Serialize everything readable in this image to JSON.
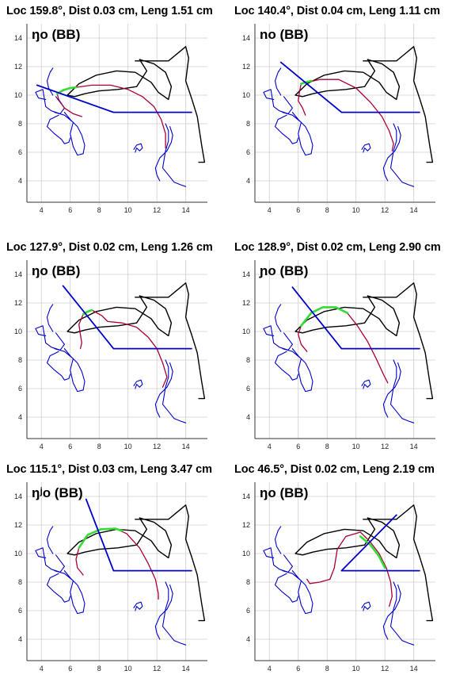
{
  "chart_data": {
    "type": "line",
    "xlim": [
      3,
      15.5
    ],
    "ylim": [
      2.5,
      15
    ],
    "xticks": [
      4,
      6,
      8,
      10,
      12,
      14
    ],
    "yticks": [
      4,
      6,
      8,
      10,
      12,
      14
    ],
    "grid": true,
    "panels": [
      {
        "title": "Loc 159.8°, Dist  0.03 cm, Leng  1.51 cm",
        "label": "ŋo (BB)",
        "blue_line": [
          [
            3.7,
            10.7
          ],
          [
            9,
            8.8
          ],
          [
            14.4,
            8.8
          ]
        ],
        "tongue": [
          [
            5.1,
            10.1
          ],
          [
            5.8,
            10.45
          ],
          [
            6.4,
            10.55
          ],
          [
            7.5,
            10.7
          ],
          [
            8.8,
            10.7
          ],
          [
            10,
            10.4
          ],
          [
            11,
            9.9
          ],
          [
            11.8,
            9.2
          ],
          [
            12.3,
            8.3
          ],
          [
            12.6,
            7.3
          ],
          [
            12.6,
            6.3
          ]
        ],
        "green": [
          [
            5.1,
            10.1
          ],
          [
            5.5,
            10.35
          ],
          [
            6.0,
            10.5
          ],
          [
            6.4,
            10.55
          ]
        ],
        "tip": [
          [
            5.1,
            10.1
          ],
          [
            5.2,
            9.7
          ],
          [
            5.6,
            9.1
          ],
          [
            6.2,
            8.7
          ],
          [
            6.8,
            8.5
          ]
        ]
      },
      {
        "title": "Loc 140.4°, Dist  0.04 cm, Leng  1.11 cm",
        "label": "no (BB)",
        "blue_line": [
          [
            4.8,
            12.3
          ],
          [
            9,
            8.8
          ],
          [
            14.4,
            8.8
          ]
        ],
        "tongue": [
          [
            6.2,
            10.8
          ],
          [
            6.6,
            10.9
          ],
          [
            7.5,
            11.1
          ],
          [
            8.8,
            11.1
          ],
          [
            10,
            10.5
          ],
          [
            11,
            9.5
          ],
          [
            11.8,
            8.5
          ],
          [
            12.3,
            7.5
          ],
          [
            12.6,
            6.6
          ],
          [
            12.5,
            6.1
          ]
        ],
        "green": [
          [
            6.2,
            10.8
          ],
          [
            6.5,
            10.9
          ],
          [
            6.9,
            11.0
          ]
        ],
        "tip": [
          [
            6.2,
            10.8
          ],
          [
            6.1,
            10.3
          ],
          [
            6.0,
            9.6
          ],
          [
            6.3,
            9.1
          ],
          [
            6.5,
            8.6
          ]
        ]
      },
      {
        "title": "Loc 127.9°, Dist  0.02 cm, Leng  1.26 cm",
        "label": "ŋo (BB)",
        "blue_line": [
          [
            5.5,
            13.2
          ],
          [
            9,
            8.8
          ],
          [
            14.4,
            8.8
          ]
        ],
        "tongue": [
          [
            6.9,
            11.2
          ],
          [
            7.5,
            11.5
          ],
          [
            8.2,
            11.1
          ],
          [
            8.6,
            10.7
          ],
          [
            9.6,
            10.6
          ],
          [
            10.6,
            10.3
          ],
          [
            11.4,
            9.6
          ],
          [
            12.0,
            8.8
          ],
          [
            12.4,
            7.8
          ],
          [
            12.7,
            6.8
          ],
          [
            12.4,
            6.1
          ]
        ],
        "green": [
          [
            6.9,
            11.2
          ],
          [
            7.2,
            11.4
          ],
          [
            7.5,
            11.5
          ]
        ],
        "tip": [
          [
            6.9,
            11.2
          ],
          [
            6.6,
            10.5
          ],
          [
            6.7,
            9.8
          ],
          [
            6.8,
            9.2
          ],
          [
            6.7,
            8.8
          ]
        ]
      },
      {
        "title": "Loc 128.9°, Dist  0.02 cm, Leng  2.90 cm",
        "label": "ɲo (BB)",
        "blue_line": [
          [
            5.6,
            13.1
          ],
          [
            9,
            8.8
          ],
          [
            14.4,
            8.8
          ]
        ],
        "tongue": [
          [
            6.2,
            10.4
          ],
          [
            6.9,
            11.3
          ],
          [
            7.7,
            11.7
          ],
          [
            8.6,
            11.7
          ],
          [
            9.4,
            11.3
          ],
          [
            10.1,
            10.4
          ],
          [
            10.8,
            9.3
          ],
          [
            11.4,
            8.1
          ],
          [
            11.9,
            7.0
          ],
          [
            12.2,
            6.4
          ]
        ],
        "green": [
          [
            6.2,
            10.4
          ],
          [
            6.9,
            11.3
          ],
          [
            7.7,
            11.7
          ],
          [
            8.6,
            11.7
          ],
          [
            9.4,
            11.3
          ]
        ],
        "tip": [
          [
            6.2,
            10.4
          ],
          [
            6.0,
            9.8
          ],
          [
            6.2,
            9.1
          ],
          [
            6.6,
            8.6
          ]
        ]
      },
      {
        "title": "Loc 115.1°, Dist  0.03 cm, Leng  3.47 cm",
        "label": "ŋʲo (BB)",
        "blue_line": [
          [
            7.1,
            13.8
          ],
          [
            9,
            8.8
          ],
          [
            14.4,
            8.8
          ]
        ],
        "tongue": [
          [
            6.7,
            10.5
          ],
          [
            7.2,
            11.3
          ],
          [
            8.1,
            11.7
          ],
          [
            9.1,
            11.75
          ],
          [
            9.9,
            11.4
          ],
          [
            10.8,
            10.4
          ],
          [
            11.4,
            9.3
          ],
          [
            11.9,
            8.2
          ],
          [
            12.1,
            7.2
          ],
          [
            12.1,
            6.8
          ]
        ],
        "green": [
          [
            6.6,
            10.4
          ],
          [
            7.2,
            11.3
          ],
          [
            8.1,
            11.7
          ],
          [
            9.1,
            11.75
          ],
          [
            9.6,
            11.6
          ]
        ],
        "tip": [
          [
            6.6,
            10.4
          ],
          [
            6.4,
            9.6
          ],
          [
            6.5,
            9.0
          ],
          [
            6.9,
            8.5
          ]
        ]
      },
      {
        "title": "Loc 46.5°, Dist  0.02 cm, Leng  2.19 cm",
        "label": "ŋo (BB)",
        "blue_line": [
          [
            12.8,
            12.7
          ],
          [
            9,
            8.8
          ],
          [
            14.4,
            8.8
          ]
        ],
        "tongue": [
          [
            6.8,
            7.9
          ],
          [
            7.5,
            8.0
          ],
          [
            8.2,
            8.2
          ],
          [
            8.5,
            9.0
          ],
          [
            8.7,
            10.3
          ],
          [
            9.3,
            11.2
          ],
          [
            10.3,
            11.5
          ],
          [
            11.0,
            10.8
          ],
          [
            11.6,
            10.0
          ],
          [
            12.1,
            9.0
          ],
          [
            12.4,
            8.0
          ],
          [
            12.5,
            7.0
          ],
          [
            12.3,
            6.3
          ]
        ],
        "green": [
          [
            10.3,
            11.2
          ],
          [
            11.0,
            10.6
          ],
          [
            11.6,
            9.8
          ],
          [
            12.0,
            9.0
          ]
        ],
        "tip": [
          [
            6.8,
            7.9
          ],
          [
            6.6,
            8.2
          ]
        ]
      }
    ],
    "fixed_outlines": {
      "palate": [
        [
          10.5,
          12.4
        ],
        [
          12.8,
          12.4
        ],
        [
          14.0,
          13.4
        ],
        [
          14.2,
          12.6
        ],
        [
          14.0,
          11.0
        ],
        [
          14.4,
          9.8
        ],
        [
          14.8,
          8.5
        ],
        [
          15.1,
          6.5
        ],
        [
          15.3,
          5.3
        ],
        [
          14.9,
          5.3
        ]
      ],
      "velum_loop": [
        [
          5.8,
          10.0
        ],
        [
          6.6,
          10.8
        ],
        [
          7.8,
          11.4
        ],
        [
          9.2,
          11.7
        ],
        [
          10.5,
          11.6
        ],
        [
          11.6,
          10.9
        ],
        [
          12.1,
          10.2
        ],
        [
          12.8,
          9.7
        ],
        [
          13.0,
          10.6
        ],
        [
          12.6,
          11.6
        ],
        [
          11.8,
          12.2
        ],
        [
          10.8,
          12.5
        ],
        [
          11.3,
          11.7
        ],
        [
          10.6,
          10.6
        ],
        [
          9.3,
          10.4
        ],
        [
          8.0,
          10.3
        ],
        [
          7.0,
          10.1
        ],
        [
          6.3,
          9.9
        ],
        [
          5.8,
          10.0
        ]
      ],
      "lips_upper": [
        [
          4.8,
          10.0
        ],
        [
          4.5,
          10.5
        ],
        [
          4.4,
          11.0
        ],
        [
          4.6,
          11.6
        ],
        [
          4.8,
          11.9
        ]
      ],
      "lips_lower": [
        [
          5.0,
          9.9
        ],
        [
          5.6,
          9.1
        ],
        [
          5.3,
          8.7
        ],
        [
          4.7,
          8.9
        ],
        [
          4.3,
          9.2
        ],
        [
          4.1,
          10.4
        ],
        [
          3.6,
          10.2
        ],
        [
          3.8,
          9.8
        ],
        [
          4.3,
          9.7
        ]
      ],
      "lower_lip": [
        [
          4.9,
          8.8
        ],
        [
          5.6,
          8.6
        ],
        [
          6.2,
          8.1
        ],
        [
          6.0,
          7.3
        ],
        [
          6.2,
          6.4
        ],
        [
          6.5,
          5.8
        ],
        [
          6.9,
          5.9
        ],
        [
          7.0,
          6.5
        ],
        [
          6.8,
          7.2
        ],
        [
          6.5,
          7.8
        ],
        [
          6.0,
          8.3
        ],
        [
          5.6,
          8.8
        ]
      ],
      "hyoid": [
        [
          5.2,
          8.6
        ],
        [
          4.6,
          8.3
        ],
        [
          4.4,
          7.8
        ],
        [
          4.9,
          7.3
        ],
        [
          5.4,
          6.9
        ],
        [
          5.6,
          6.6
        ],
        [
          5.9,
          6.7
        ],
        [
          6.0,
          7.0
        ]
      ],
      "blob_small": [
        [
          10.4,
          6.2
        ],
        [
          10.6,
          6.5
        ],
        [
          10.9,
          6.6
        ],
        [
          11.0,
          6.3
        ],
        [
          10.8,
          6.1
        ],
        [
          10.6,
          6.3
        ],
        [
          10.5,
          6.0
        ]
      ],
      "pharynx_back": [
        [
          12.6,
          8.0
        ],
        [
          12.8,
          7.5
        ],
        [
          12.8,
          6.8
        ],
        [
          12.6,
          6.1
        ],
        [
          12.5,
          5.5
        ],
        [
          12.4,
          4.9
        ],
        [
          12.8,
          4.4
        ],
        [
          13.2,
          3.9
        ],
        [
          13.7,
          3.7
        ],
        [
          14.0,
          3.6
        ]
      ],
      "pharynx_front": [
        [
          12.2,
          4.0
        ],
        [
          12.0,
          4.4
        ],
        [
          11.9,
          4.9
        ],
        [
          12.2,
          5.6
        ],
        [
          12.7,
          6.1
        ],
        [
          13.0,
          6.7
        ],
        [
          13.1,
          7.2
        ],
        [
          12.9,
          7.8
        ]
      ]
    },
    "colors": {
      "outline": "#000000",
      "blue": "#0000cc",
      "tongue": "#aa0033",
      "green": "#33dd33",
      "grid": "#cfcfcf",
      "axis": "#333333"
    }
  }
}
